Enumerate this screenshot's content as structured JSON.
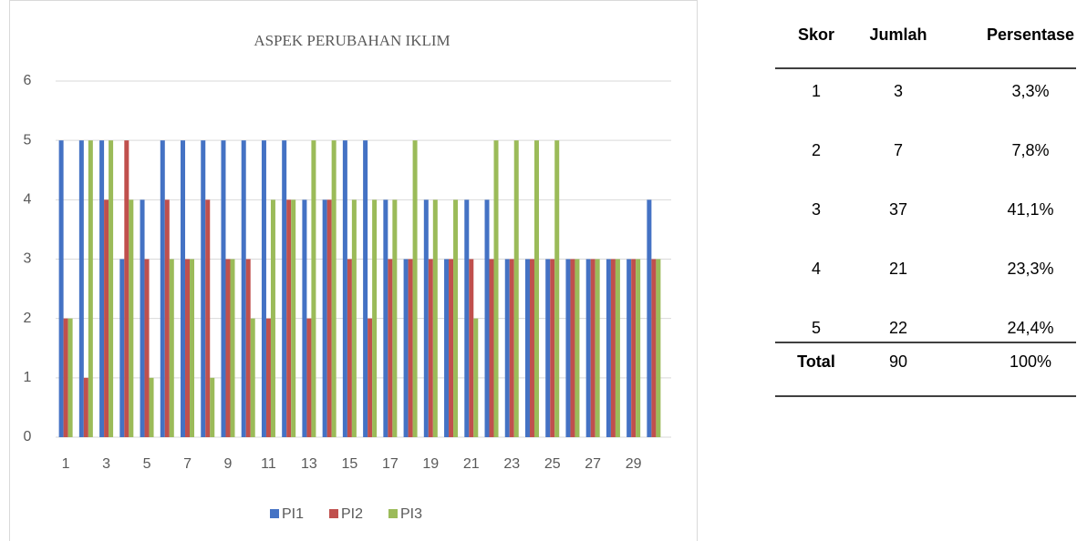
{
  "chart_data": {
    "type": "bar",
    "title": "ASPEK PERUBAHAN IKLIM",
    "categories": [
      "1",
      null,
      "3",
      null,
      "5",
      null,
      "7",
      null,
      "9",
      null,
      "11",
      null,
      "13",
      null,
      "15",
      null,
      "17",
      null,
      "19",
      null,
      "21",
      null,
      "23",
      null,
      "25",
      null,
      "27",
      null,
      "29",
      null
    ],
    "series": [
      {
        "name": "PI1",
        "color": "#4472c4",
        "values": [
          5,
          5,
          5,
          3,
          4,
          5,
          5,
          5,
          5,
          5,
          5,
          5,
          4,
          4,
          5,
          5,
          4,
          3,
          4,
          3,
          4,
          4,
          3,
          3,
          3,
          3,
          3,
          3,
          3,
          4
        ]
      },
      {
        "name": "PI2",
        "color": "#c0504d",
        "values": [
          2,
          1,
          4,
          5,
          3,
          4,
          3,
          4,
          3,
          3,
          2,
          4,
          2,
          4,
          3,
          2,
          3,
          3,
          3,
          3,
          3,
          3,
          3,
          3,
          3,
          3,
          3,
          3,
          3,
          3
        ]
      },
      {
        "name": "PI3",
        "color": "#9bbb59",
        "values": [
          2,
          5,
          5,
          4,
          1,
          3,
          3,
          1,
          3,
          2,
          4,
          4,
          5,
          5,
          4,
          4,
          4,
          5,
          4,
          4,
          2,
          5,
          5,
          5,
          5,
          3,
          3,
          3,
          3,
          3
        ]
      }
    ],
    "ylim": [
      0,
      6
    ],
    "yticks": [
      0,
      1,
      2,
      3,
      4,
      5,
      6
    ],
    "grid": true,
    "legend": "bottom"
  },
  "table": {
    "header": [
      "Skor",
      "Jumlah",
      "Persentase"
    ],
    "rows": [
      [
        "1",
        "3",
        "3,3%"
      ],
      [
        "2",
        "7",
        "7,8%"
      ],
      [
        "3",
        "37",
        "41,1%"
      ],
      [
        "4",
        "21",
        "23,3%"
      ],
      [
        "5",
        "22",
        "24,4%"
      ]
    ],
    "total": [
      "Total",
      "90",
      "100%"
    ]
  }
}
